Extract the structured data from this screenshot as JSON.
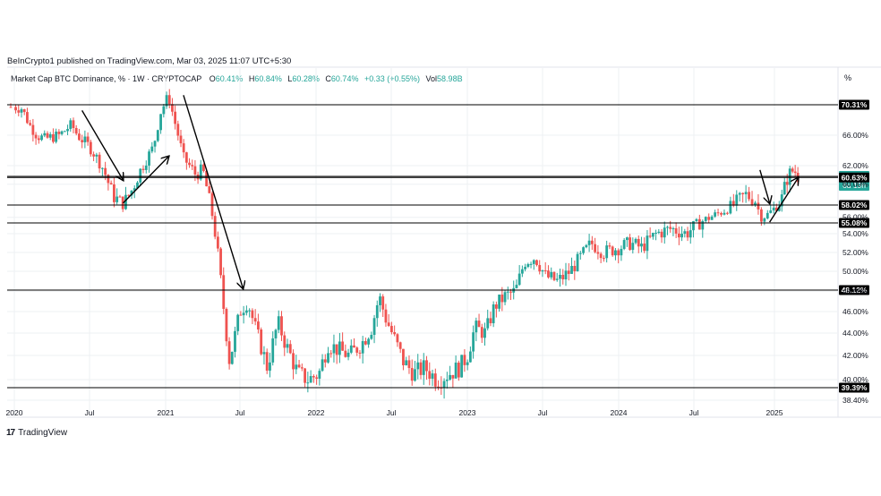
{
  "header": {
    "publisher": "BeInCrypto1 published on TradingView.com, Mar 03, 2025 11:07 UTC+5:30",
    "symbol": "Market Cap BTC Dominance, % · 1W · CRYPTOCAP",
    "o_label": "O",
    "o_val": "60.41%",
    "h_label": "H",
    "h_val": "60.84%",
    "l_label": "L",
    "l_val": "60.28%",
    "c_label": "C",
    "c_val": "60.74%",
    "change": "+0.33 (+0.55%)",
    "vol_label": "Vol",
    "vol_val": "58.98B"
  },
  "footer": {
    "brand": "TradingView"
  },
  "colors": {
    "up": "#26a69a",
    "down": "#ef5350",
    "line": "#000000",
    "grid": "#eef0f3",
    "text": "#131722",
    "current": "#26a69a"
  },
  "chart_data": {
    "type": "candlestick",
    "y_unit": "%",
    "ylim": [
      38.4,
      72
    ],
    "y_ticks": [
      "38.40%",
      "40.00%",
      "42.00%",
      "44.00%",
      "46.00%",
      "48.00%",
      "50.00%",
      "52.00%",
      "54.00%",
      "56.00%",
      "60.00%",
      "62.00%",
      "66.00%"
    ],
    "y_tick_values": [
      38.4,
      40,
      42,
      44,
      46,
      48,
      50,
      52,
      54,
      56,
      60,
      62,
      66
    ],
    "x_labels": [
      "2020",
      "Jul",
      "2021",
      "Jul",
      "2022",
      "Jul",
      "2023",
      "Jul",
      "2024",
      "Jul",
      "2025"
    ],
    "x_label_times": [
      2020.0,
      2020.5,
      2021.0,
      2021.5,
      2022.0,
      2022.5,
      2023.0,
      2023.5,
      2024.0,
      2024.5,
      2025.0
    ],
    "xlim": [
      2019.98,
      2025.45
    ],
    "horizontal_levels": [
      {
        "value": 70.31,
        "label": "70.31%"
      },
      {
        "value": 60.74,
        "label": "60.74%",
        "sub": "6d 19h",
        "current": true
      },
      {
        "value": 60.63,
        "label": "60.63%"
      },
      {
        "value": 58.02,
        "label": "58.02%"
      },
      {
        "value": 55.08,
        "label": "55.08%"
      },
      {
        "value": 48.12,
        "label": "48.12%"
      },
      {
        "value": 39.39,
        "label": "39.39%"
      }
    ],
    "price_path": [
      [
        2019.99,
        70.0
      ],
      [
        2020.05,
        69.8
      ],
      [
        2020.1,
        67.5
      ],
      [
        2020.15,
        66.0
      ],
      [
        2020.2,
        65.5
      ],
      [
        2020.3,
        66.0
      ],
      [
        2020.38,
        67.5
      ],
      [
        2020.42,
        66.0
      ],
      [
        2020.5,
        64.5
      ],
      [
        2020.58,
        62.0
      ],
      [
        2020.65,
        59.0
      ],
      [
        2020.72,
        58.0
      ],
      [
        2020.78,
        59.5
      ],
      [
        2020.85,
        62.0
      ],
      [
        2020.92,
        64.5
      ],
      [
        2020.97,
        69.5
      ],
      [
        2021.02,
        71.5
      ],
      [
        2021.06,
        68.0
      ],
      [
        2021.12,
        63.0
      ],
      [
        2021.2,
        61.0
      ],
      [
        2021.25,
        61.5
      ],
      [
        2021.3,
        58.0
      ],
      [
        2021.35,
        52.0
      ],
      [
        2021.4,
        45.0
      ],
      [
        2021.43,
        41.5
      ],
      [
        2021.47,
        44.0
      ],
      [
        2021.5,
        46.0
      ],
      [
        2021.55,
        47.0
      ],
      [
        2021.6,
        44.5
      ],
      [
        2021.68,
        41.0
      ],
      [
        2021.75,
        45.0
      ],
      [
        2021.8,
        43.0
      ],
      [
        2021.88,
        40.5
      ],
      [
        2021.95,
        40.0
      ],
      [
        2022.02,
        40.5
      ],
      [
        2022.08,
        43.0
      ],
      [
        2022.15,
        42.5
      ],
      [
        2022.22,
        42.0
      ],
      [
        2022.3,
        43.0
      ],
      [
        2022.37,
        44.5
      ],
      [
        2022.42,
        47.5
      ],
      [
        2022.46,
        45.5
      ],
      [
        2022.52,
        43.5
      ],
      [
        2022.58,
        41.5
      ],
      [
        2022.65,
        40.5
      ],
      [
        2022.72,
        41.0
      ],
      [
        2022.8,
        40.0
      ],
      [
        2022.88,
        40.5
      ],
      [
        2022.95,
        41.0
      ],
      [
        2023.0,
        42.0
      ],
      [
        2023.05,
        44.5
      ],
      [
        2023.12,
        44.0
      ],
      [
        2023.18,
        46.5
      ],
      [
        2023.25,
        47.5
      ],
      [
        2023.32,
        48.0
      ],
      [
        2023.38,
        51.0
      ],
      [
        2023.45,
        51.5
      ],
      [
        2023.52,
        49.5
      ],
      [
        2023.6,
        49.0
      ],
      [
        2023.68,
        50.0
      ],
      [
        2023.75,
        51.5
      ],
      [
        2023.82,
        53.0
      ],
      [
        2023.9,
        52.0
      ],
      [
        2024.0,
        52.5
      ],
      [
        2024.08,
        53.0
      ],
      [
        2024.15,
        52.5
      ],
      [
        2024.25,
        54.0
      ],
      [
        2024.35,
        54.5
      ],
      [
        2024.45,
        54.0
      ],
      [
        2024.52,
        55.0
      ],
      [
        2024.6,
        56.0
      ],
      [
        2024.68,
        57.0
      ],
      [
        2024.75,
        58.0
      ],
      [
        2024.82,
        59.0
      ],
      [
        2024.88,
        58.5
      ],
      [
        2024.92,
        56.0
      ],
      [
        2024.96,
        56.5
      ],
      [
        2025.0,
        57.5
      ],
      [
        2025.05,
        58.5
      ],
      [
        2025.1,
        61.0
      ],
      [
        2025.14,
        61.5
      ],
      [
        2025.17,
        60.74
      ]
    ],
    "trend_arrows": [
      [
        [
          2020.45,
          69.5
        ],
        [
          2020.72,
          60.4
        ]
      ],
      [
        [
          2020.72,
          58.2
        ],
        [
          2021.02,
          63.2
        ]
      ],
      [
        [
          2021.12,
          71.6
        ],
        [
          2021.52,
          48.3
        ]
      ],
      [
        [
          2024.91,
          61.5
        ],
        [
          2024.97,
          58.2
        ]
      ],
      [
        [
          2024.97,
          55.2
        ],
        [
          2025.17,
          60.6
        ]
      ]
    ]
  }
}
